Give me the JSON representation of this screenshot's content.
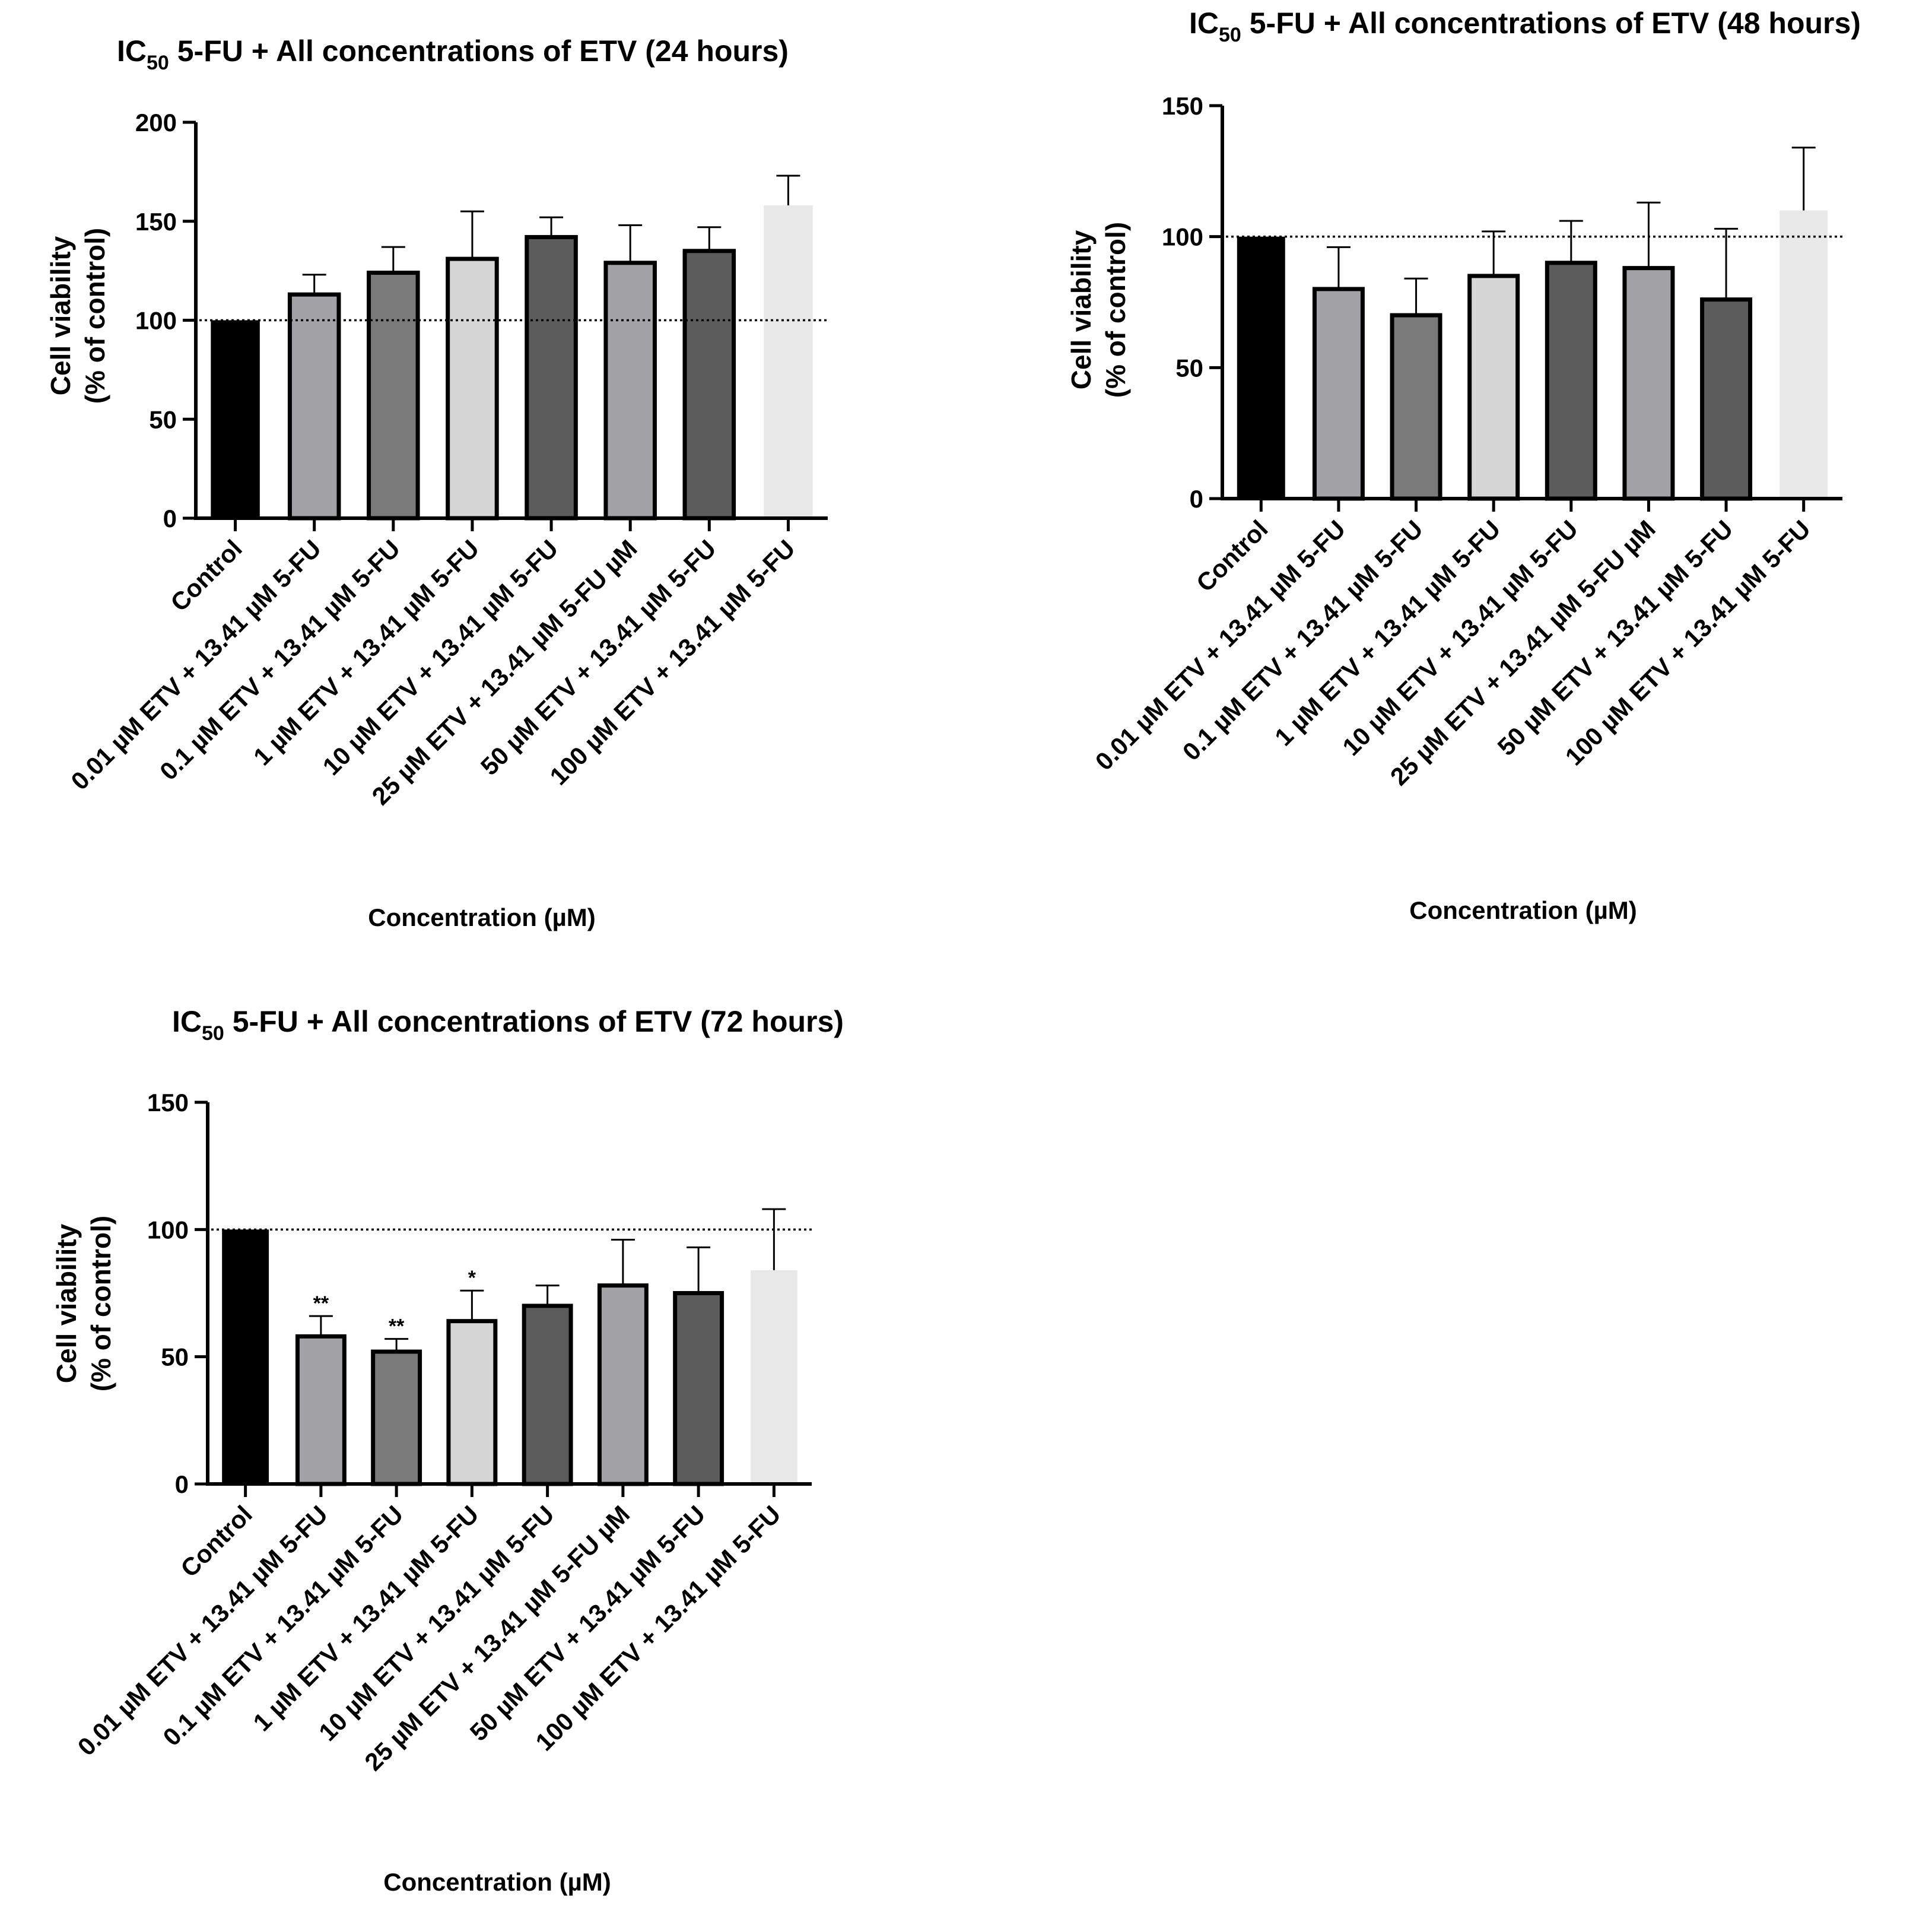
{
  "chart_data": [
    {
      "type": "bar",
      "title_prefix": "IC",
      "title_sub": "50",
      "title_rest": " 5-FU + All concentrations of ETV (24 hours)",
      "ylabel_line1": "Cell viability",
      "ylabel_line2": "(% of control)",
      "xlabel": "Concentration (µM)",
      "ylim": [
        0,
        200
      ],
      "yticks": [
        0,
        50,
        100,
        150,
        200
      ],
      "reference_line": 100,
      "categories": [
        "Control",
        "0.01 µM ETV + 13.41 µM 5-FU",
        "0.1 µM ETV + 13.41 µM 5-FU",
        "1 µM ETV + 13.41 µM 5-FU",
        "10 µM ETV + 13.41 µM 5-FU",
        "25 µM ETV + 13.41 µM 5-FU µM",
        "50 µM ETV + 13.41 µM 5-FU",
        "100 µM ETV + 13.41 µM 5-FU"
      ],
      "values": [
        100,
        113,
        124,
        131,
        142,
        129,
        135,
        158
      ],
      "errors": [
        0,
        10,
        13,
        24,
        10,
        19,
        12,
        15
      ],
      "significance": [
        "",
        "",
        "",
        "",
        "",
        "",
        "",
        ""
      ],
      "colors": [
        "#000000",
        "#a3a3a7",
        "#7a7a7a",
        "#d6d6d6",
        "#5c5c5c",
        "#a3a3a7",
        "#5c5c5c",
        "#e8e8e8"
      ]
    },
    {
      "type": "bar",
      "title_prefix": "IC",
      "title_sub": "50",
      "title_rest": " 5-FU + All concentrations of ETV (48 hours)",
      "ylabel_line1": "Cell viability",
      "ylabel_line2": "(% of control)",
      "xlabel": "Concentration (µM)",
      "ylim": [
        0,
        150
      ],
      "yticks": [
        0,
        50,
        100,
        150
      ],
      "reference_line": 100,
      "categories": [
        "Control",
        "0.01 µM ETV + 13.41 µM 5-FU",
        "0.1 µM ETV + 13.41 µM 5-FU",
        "1 µM ETV + 13.41 µM 5-FU",
        "10 µM ETV + 13.41 µM 5-FU",
        "25 µM ETV + 13.41 µM 5-FU µM",
        "50 µM ETV + 13.41 µM 5-FU",
        "100 µM ETV + 13.41 µM 5-FU"
      ],
      "values": [
        100,
        80,
        70,
        85,
        90,
        88,
        76,
        110
      ],
      "errors": [
        0,
        16,
        14,
        17,
        16,
        25,
        27,
        24
      ],
      "significance": [
        "",
        "",
        "",
        "",
        "",
        "",
        "",
        ""
      ],
      "colors": [
        "#000000",
        "#a3a3a7",
        "#7a7a7a",
        "#d6d6d6",
        "#5c5c5c",
        "#a3a3a7",
        "#5c5c5c",
        "#e8e8e8"
      ]
    },
    {
      "type": "bar",
      "title_prefix": "IC",
      "title_sub": "50",
      "title_rest": " 5-FU + All concentrations of ETV (72 hours)",
      "ylabel_line1": "Cell viability",
      "ylabel_line2": "(% of control)",
      "xlabel": "Concentration (µM)",
      "ylim": [
        0,
        150
      ],
      "yticks": [
        0,
        50,
        100,
        150
      ],
      "reference_line": 100,
      "categories": [
        "Control",
        "0.01 µM ETV + 13.41 µM 5-FU",
        "0.1 µM ETV + 13.41 µM 5-FU",
        "1 µM ETV + 13.41 µM 5-FU",
        "10 µM ETV + 13.41 µM 5-FU",
        "25 µM ETV + 13.41 µM 5-FU µM",
        "50 µM ETV + 13.41 µM 5-FU",
        "100 µM ETV + 13.41 µM 5-FU"
      ],
      "values": [
        100,
        58,
        52,
        64,
        70,
        78,
        75,
        84
      ],
      "errors": [
        0,
        8,
        5,
        12,
        8,
        18,
        18,
        24
      ],
      "significance": [
        "",
        "**",
        "**",
        "*",
        "",
        "",
        "",
        ""
      ],
      "colors": [
        "#000000",
        "#a3a3a7",
        "#7a7a7a",
        "#d6d6d6",
        "#5c5c5c",
        "#a3a3a7",
        "#5c5c5c",
        "#e8e8e8"
      ]
    }
  ]
}
